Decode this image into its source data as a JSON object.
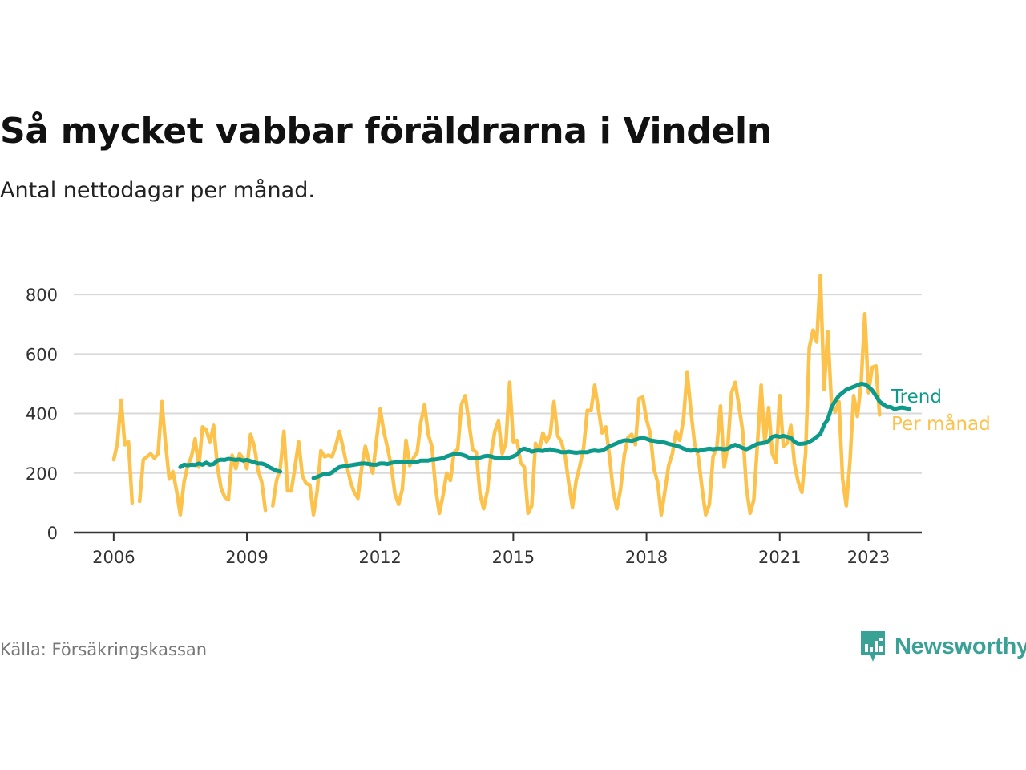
{
  "header": {
    "title": "Så mycket vabbar föräldrarna i Vindeln",
    "subtitle": "Antal nettodagar per månad."
  },
  "footer": {
    "source": "Källa: Försäkringskassan",
    "brand": "Newsworthy",
    "brand_icon": "newsworthy-logo-icon"
  },
  "colors": {
    "monthly": "#fcc24b",
    "trend": "#0e9a8b",
    "grid": "#d9d9d9",
    "axis": "#333333"
  },
  "chart_data": {
    "type": "line",
    "title": "Så mycket vabbar föräldrarna i Vindeln",
    "subtitle": "Antal nettodagar per månad.",
    "xlabel": "",
    "ylabel": "",
    "x_ticks": [
      "2006",
      "2009",
      "2012",
      "2015",
      "2018",
      "2021",
      "2023"
    ],
    "y_ticks": [
      0,
      200,
      400,
      600,
      800
    ],
    "xlim": [
      2005.1,
      2024.2
    ],
    "ylim": [
      0,
      900
    ],
    "grid": true,
    "legend": "inline-right",
    "series": [
      {
        "name": "Per månad",
        "color": "#fcc24b",
        "start": 2006.0,
        "step": 0.08333,
        "values": [
          245,
          300,
          445,
          295,
          305,
          100,
          null,
          105,
          245,
          255,
          265,
          250,
          265,
          440,
          300,
          180,
          205,
          140,
          60,
          170,
          225,
          255,
          315,
          220,
          355,
          345,
          305,
          360,
          225,
          150,
          120,
          110,
          260,
          215,
          265,
          250,
          215,
          330,
          290,
          210,
          170,
          75,
          null,
          90,
          175,
          215,
          340,
          140,
          140,
          220,
          305,
          190,
          165,
          160,
          60,
          140,
          275,
          255,
          260,
          255,
          290,
          340,
          285,
          225,
          170,
          135,
          115,
          215,
          290,
          240,
          200,
          310,
          415,
          340,
          285,
          225,
          130,
          95,
          145,
          310,
          225,
          250,
          270,
          370,
          430,
          330,
          290,
          150,
          65,
          125,
          200,
          175,
          270,
          280,
          430,
          460,
          370,
          280,
          270,
          130,
          80,
          140,
          265,
          340,
          375,
          265,
          300,
          505,
          305,
          310,
          235,
          220,
          65,
          90,
          300,
          275,
          335,
          305,
          330,
          440,
          325,
          305,
          260,
          165,
          85,
          175,
          225,
          285,
          410,
          410,
          495,
          415,
          335,
          355,
          255,
          140,
          80,
          145,
          260,
          320,
          330,
          295,
          450,
          455,
          380,
          335,
          215,
          170,
          60,
          140,
          225,
          265,
          340,
          310,
          380,
          540,
          410,
          300,
          255,
          150,
          60,
          95,
          255,
          285,
          425,
          220,
          295,
          470,
          505,
          425,
          340,
          150,
          65,
          110,
          300,
          495,
          300,
          420,
          265,
          235,
          460,
          290,
          300,
          360,
          230,
          170,
          135,
          265,
          620,
          680,
          640,
          865,
          480,
          675,
          435,
          405,
          440,
          180,
          90,
          240,
          460,
          390,
          500,
          735,
          470,
          555,
          560,
          395
        ]
      },
      {
        "name": "Trend",
        "color": "#0e9a8b",
        "start": 2007.5,
        "step": 0.08333,
        "values": [
          220,
          228,
          226,
          228,
          227,
          232,
          228,
          235,
          228,
          230,
          242,
          245,
          244,
          248,
          246,
          244,
          246,
          242,
          244,
          240,
          236,
          232,
          232,
          228,
          220,
          214,
          208,
          205,
          null,
          null,
          null,
          null,
          null,
          null,
          null,
          null,
          183,
          187,
          192,
          198,
          196,
          202,
          212,
          220,
          222,
          223,
          226,
          228,
          230,
          232,
          232,
          230,
          228,
          228,
          232,
          232,
          230,
          234,
          236,
          238,
          238,
          238,
          236,
          236,
          238,
          242,
          242,
          242,
          245,
          246,
          248,
          250,
          256,
          260,
          264,
          264,
          262,
          258,
          252,
          250,
          250,
          252,
          256,
          258,
          256,
          252,
          250,
          250,
          252,
          252,
          256,
          262,
          278,
          282,
          278,
          272,
          275,
          276,
          274,
          278,
          280,
          276,
          274,
          270,
          270,
          272,
          270,
          268,
          270,
          270,
          270,
          274,
          276,
          274,
          276,
          282,
          290,
          295,
          300,
          306,
          310,
          310,
          308,
          312,
          316,
          318,
          315,
          310,
          308,
          306,
          304,
          302,
          298,
          295,
          292,
          288,
          282,
          278,
          275,
          278,
          274,
          278,
          280,
          282,
          280,
          282,
          282,
          280,
          282,
          290,
          295,
          290,
          284,
          280,
          285,
          292,
          298,
          300,
          302,
          308,
          322,
          325,
          322,
          325,
          322,
          318,
          305,
          298,
          298,
          300,
          305,
          312,
          322,
          332,
          362,
          380,
          420,
          442,
          460,
          470,
          480,
          485,
          490,
          495,
          500,
          498,
          490,
          478,
          460,
          440,
          430,
          422,
          422,
          415,
          418,
          420,
          418,
          415
        ]
      }
    ]
  }
}
